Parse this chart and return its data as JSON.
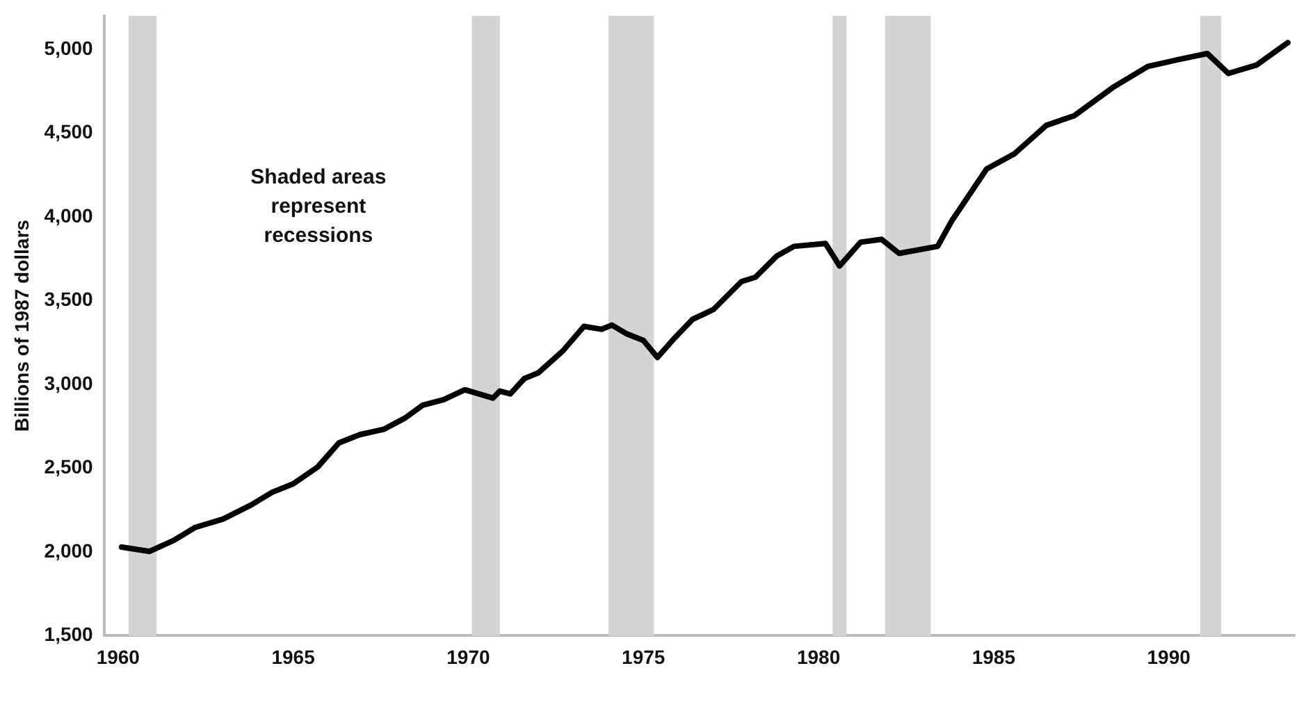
{
  "chart_data": {
    "type": "line",
    "ylabel": "Billions of 1987 dollars",
    "annotations": [
      "Shaded areas\nrepresent\nrecessions"
    ],
    "x": [
      1960.1,
      1960.9,
      1961.6,
      1962.2,
      1963.0,
      1963.8,
      1964.4,
      1965.0,
      1965.7,
      1966.3,
      1966.9,
      1967.6,
      1968.2,
      1968.7,
      1969.3,
      1969.9,
      1970.7,
      1970.9,
      1971.2,
      1971.6,
      1972.0,
      1972.7,
      1973.3,
      1973.8,
      1974.1,
      1974.5,
      1975.0,
      1975.4,
      1975.9,
      1976.4,
      1977.0,
      1977.8,
      1978.2,
      1978.8,
      1979.3,
      1980.2,
      1980.6,
      1981.2,
      1981.8,
      1982.3,
      1983.4,
      1983.8,
      1984.8,
      1985.6,
      1986.5,
      1987.3,
      1988.4,
      1989.4,
      1990.3,
      1991.1,
      1991.7,
      1992.5,
      1993.4
    ],
    "series": [
      {
        "color": "#000000",
        "values": [
          2029,
          2003,
          2070,
          2146,
          2196,
          2280,
          2356,
          2406,
          2507,
          2650,
          2700,
          2733,
          2800,
          2876,
          2909,
          2968,
          2918,
          2960,
          2943,
          3035,
          3069,
          3200,
          3346,
          3329,
          3354,
          3304,
          3262,
          3161,
          3279,
          3388,
          3447,
          3614,
          3640,
          3765,
          3824,
          3841,
          3707,
          3849,
          3866,
          3782,
          3824,
          3975,
          4286,
          4378,
          4546,
          4604,
          4772,
          4898,
          4940,
          4975,
          4856,
          4906,
          5040
        ]
      }
    ],
    "bands": [
      {
        "axis": "x",
        "from": 1960.3,
        "to": 1961.1,
        "color": "#d4d4d4"
      },
      {
        "axis": "x",
        "from": 1970.1,
        "to": 1970.9,
        "color": "#d4d4d4"
      },
      {
        "axis": "x",
        "from": 1974.0,
        "to": 1975.3,
        "color": "#d4d4d4"
      },
      {
        "axis": "x",
        "from": 1980.4,
        "to": 1980.8,
        "color": "#d4d4d4"
      },
      {
        "axis": "x",
        "from": 1981.9,
        "to": 1983.2,
        "color": "#d4d4d4"
      },
      {
        "axis": "x",
        "from": 1990.9,
        "to": 1991.5,
        "color": "#d4d4d4"
      }
    ],
    "xlim": [
      1959.6,
      1993.6
    ],
    "xticks": [
      1960,
      1965,
      1970,
      1975,
      1980,
      1985,
      1990
    ],
    "ylim": [
      1500,
      5200
    ],
    "yticks": [
      {
        "value": 1500,
        "label": "1,500"
      },
      {
        "value": 2000,
        "label": "2,000"
      },
      {
        "value": 2500,
        "label": "2,500"
      },
      {
        "value": 3000,
        "label": "3,000"
      },
      {
        "value": 3500,
        "label": "3,500"
      },
      {
        "value": 4000,
        "label": "4,000"
      },
      {
        "value": 4500,
        "label": "4,500"
      },
      {
        "value": 5000,
        "label": "5,000"
      }
    ],
    "grid": false,
    "legend": false,
    "marker": "none",
    "line_style": "solid"
  }
}
